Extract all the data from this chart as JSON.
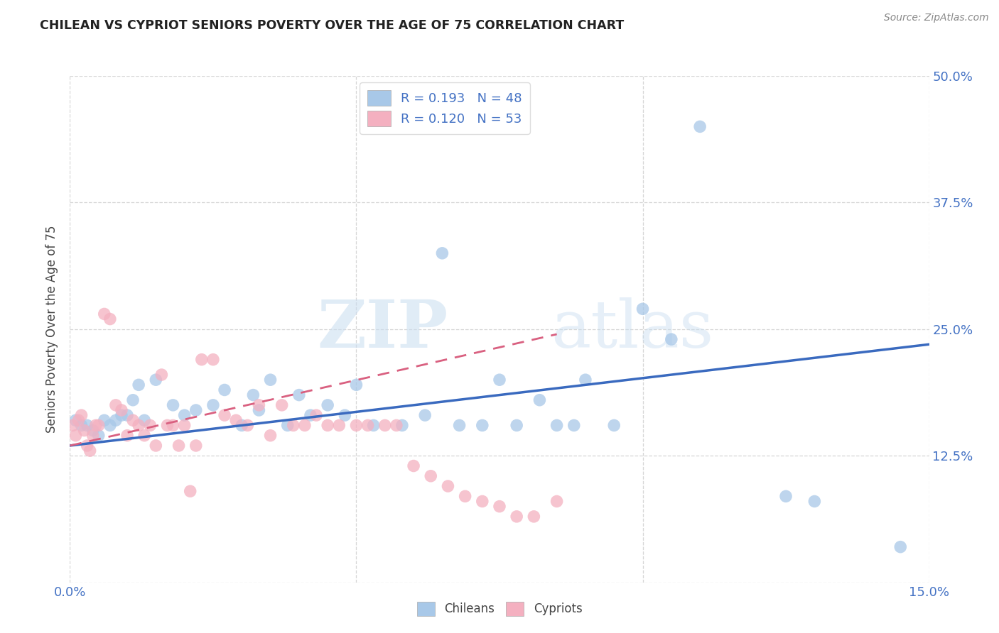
{
  "title": "CHILEAN VS CYPRIOT SENIORS POVERTY OVER THE AGE OF 75 CORRELATION CHART",
  "source": "Source: ZipAtlas.com",
  "ylabel": "Seniors Poverty Over the Age of 75",
  "xlim": [
    0.0,
    0.15
  ],
  "ylim": [
    0.0,
    0.5
  ],
  "xticks": [
    0.0,
    0.05,
    0.1,
    0.15
  ],
  "xticklabels": [
    "0.0%",
    "",
    "",
    "15.0%"
  ],
  "yticks": [
    0.0,
    0.125,
    0.25,
    0.375,
    0.5
  ],
  "yticklabels": [
    "",
    "12.5%",
    "25.0%",
    "37.5%",
    "50.0%"
  ],
  "chilean_color": "#a8c8e8",
  "cypriot_color": "#f4b0c0",
  "chilean_line_color": "#3a6abf",
  "cypriot_line_color": "#d96080",
  "R_chilean": 0.193,
  "N_chilean": 48,
  "R_cypriot": 0.12,
  "N_cypriot": 53,
  "watermark_zip": "ZIP",
  "watermark_atlas": "atlas",
  "chilean_x": [
    0.001,
    0.002,
    0.003,
    0.004,
    0.005,
    0.006,
    0.007,
    0.008,
    0.009,
    0.01,
    0.011,
    0.012,
    0.013,
    0.015,
    0.018,
    0.02,
    0.022,
    0.025,
    0.027,
    0.03,
    0.032,
    0.033,
    0.035,
    0.038,
    0.04,
    0.042,
    0.045,
    0.048,
    0.05,
    0.053,
    0.058,
    0.062,
    0.065,
    0.068,
    0.072,
    0.075,
    0.078,
    0.082,
    0.085,
    0.088,
    0.09,
    0.095,
    0.1,
    0.105,
    0.11,
    0.125,
    0.13,
    0.145
  ],
  "chilean_y": [
    0.16,
    0.155,
    0.155,
    0.15,
    0.145,
    0.16,
    0.155,
    0.16,
    0.165,
    0.165,
    0.18,
    0.195,
    0.16,
    0.2,
    0.175,
    0.165,
    0.17,
    0.175,
    0.19,
    0.155,
    0.185,
    0.17,
    0.2,
    0.155,
    0.185,
    0.165,
    0.175,
    0.165,
    0.195,
    0.155,
    0.155,
    0.165,
    0.325,
    0.155,
    0.155,
    0.2,
    0.155,
    0.18,
    0.155,
    0.155,
    0.2,
    0.155,
    0.27,
    0.24,
    0.45,
    0.085,
    0.08,
    0.035
  ],
  "cypriot_x": [
    0.0005,
    0.001,
    0.0015,
    0.002,
    0.0025,
    0.003,
    0.0035,
    0.004,
    0.0045,
    0.005,
    0.006,
    0.007,
    0.008,
    0.009,
    0.01,
    0.011,
    0.012,
    0.013,
    0.014,
    0.015,
    0.016,
    0.017,
    0.018,
    0.019,
    0.02,
    0.021,
    0.022,
    0.023,
    0.025,
    0.027,
    0.029,
    0.031,
    0.033,
    0.035,
    0.037,
    0.039,
    0.041,
    0.043,
    0.045,
    0.047,
    0.05,
    0.052,
    0.055,
    0.057,
    0.06,
    0.063,
    0.066,
    0.069,
    0.072,
    0.075,
    0.078,
    0.081,
    0.085
  ],
  "cypriot_y": [
    0.155,
    0.145,
    0.16,
    0.165,
    0.15,
    0.135,
    0.13,
    0.145,
    0.155,
    0.155,
    0.265,
    0.26,
    0.175,
    0.17,
    0.145,
    0.16,
    0.155,
    0.145,
    0.155,
    0.135,
    0.205,
    0.155,
    0.155,
    0.135,
    0.155,
    0.09,
    0.135,
    0.22,
    0.22,
    0.165,
    0.16,
    0.155,
    0.175,
    0.145,
    0.175,
    0.155,
    0.155,
    0.165,
    0.155,
    0.155,
    0.155,
    0.155,
    0.155,
    0.155,
    0.115,
    0.105,
    0.095,
    0.085,
    0.08,
    0.075,
    0.065,
    0.065,
    0.08
  ]
}
